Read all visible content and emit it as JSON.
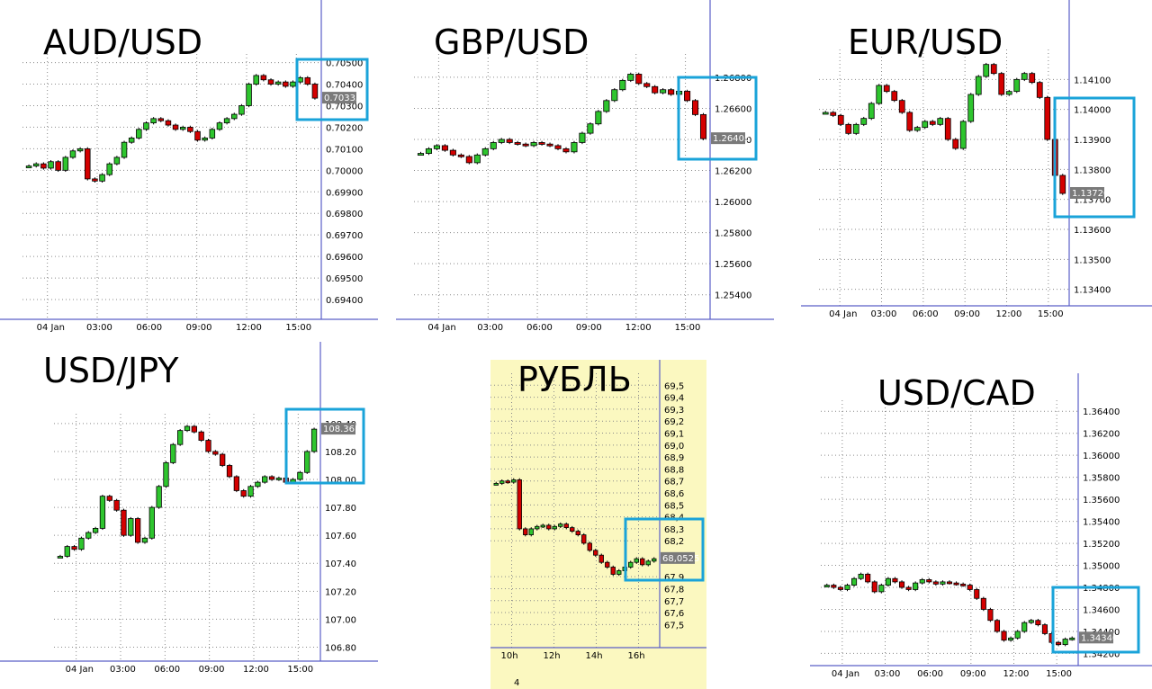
{
  "chart_data": [
    {
      "type": "candlestick",
      "title": "AUD/USD",
      "x_labels": [
        "04 Jan",
        "03:00",
        "06:00",
        "09:00",
        "12:00",
        "15:00"
      ],
      "y_ticks": [
        "0.70500",
        "0.70400",
        "0.70300",
        "0.70200",
        "0.70100",
        "0.70000",
        "0.69900",
        "0.69800",
        "0.69700",
        "0.69600",
        "0.69500",
        "0.69400"
      ],
      "ylim": [
        0.6935,
        0.7054
      ],
      "last_price_label": "0.70335",
      "last_price": 0.70335,
      "grid": true,
      "highlight": "last candles",
      "closes": [
        0.7002,
        0.7003,
        0.7001,
        0.7004,
        0.7,
        0.7006,
        0.7009,
        0.701,
        0.6996,
        0.6995,
        0.6998,
        0.7003,
        0.7006,
        0.7013,
        0.7015,
        0.7019,
        0.7022,
        0.7024,
        0.7023,
        0.7021,
        0.7019,
        0.702,
        0.7018,
        0.7014,
        0.7015,
        0.7019,
        0.7022,
        0.7024,
        0.7026,
        0.703,
        0.704,
        0.7044,
        0.7042,
        0.704,
        0.7041,
        0.7039,
        0.7041,
        0.7043,
        0.704,
        0.70335
      ]
    },
    {
      "type": "candlestick",
      "title": "GBP/USD",
      "x_labels": [
        "04 Jan",
        "03:00",
        "06:00",
        "09:00",
        "12:00",
        "15:00"
      ],
      "y_ticks": [
        "1.26800",
        "1.26600",
        "1.26400",
        "1.26200",
        "1.26000",
        "1.25800",
        "1.25600",
        "1.25400"
      ],
      "ylim": [
        1.253,
        1.2695
      ],
      "last_price_label": "1.26405",
      "last_price": 1.26405,
      "grid": true,
      "highlight": "last candles",
      "closes": [
        1.2631,
        1.2634,
        1.2636,
        1.2633,
        1.263,
        1.2629,
        1.2625,
        1.263,
        1.2634,
        1.2638,
        1.264,
        1.2638,
        1.2637,
        1.2636,
        1.2638,
        1.2637,
        1.2636,
        1.2634,
        1.2632,
        1.2638,
        1.2644,
        1.265,
        1.2658,
        1.2665,
        1.2672,
        1.2678,
        1.2682,
        1.2676,
        1.2674,
        1.267,
        1.2672,
        1.2669,
        1.2671,
        1.2665,
        1.2656,
        1.26405
      ]
    },
    {
      "type": "candlestick",
      "title": "EUR/USD",
      "x_labels": [
        "04 Jan",
        "03:00",
        "06:00",
        "09:00",
        "12:00",
        "15:00"
      ],
      "y_ticks": [
        "1.14100",
        "1.14000",
        "1.13900",
        "1.13800",
        "1.13700",
        "1.13600",
        "1.13500",
        "1.13400"
      ],
      "ylim": [
        1.1333,
        1.142
      ],
      "last_price_label": "1.13720",
      "last_price": 1.1372,
      "grid": true,
      "highlight": "last candles",
      "closes": [
        1.1399,
        1.1398,
        1.1395,
        1.1392,
        1.1395,
        1.1397,
        1.1402,
        1.1408,
        1.1406,
        1.1403,
        1.1399,
        1.1393,
        1.1394,
        1.1396,
        1.1395,
        1.1397,
        1.139,
        1.1387,
        1.1396,
        1.1405,
        1.1411,
        1.1415,
        1.1412,
        1.1405,
        1.1406,
        1.141,
        1.1412,
        1.1409,
        1.1404,
        1.139,
        1.1378,
        1.1372
      ]
    },
    {
      "type": "candlestick",
      "title": "USD/JPY",
      "x_labels": [
        "04 Jan",
        "03:00",
        "06:00",
        "09:00",
        "12:00",
        "15:00"
      ],
      "y_ticks": [
        "108.40",
        "108.20",
        "108.00",
        "107.80",
        "107.60",
        "107.40",
        "107.20",
        "107.00",
        "106.80"
      ],
      "ylim": [
        106.7,
        108.47
      ],
      "last_price_label": "108.36",
      "last_price": 108.36,
      "grid": true,
      "highlight": "last candles",
      "closes": [
        107.45,
        107.52,
        107.5,
        107.58,
        107.62,
        107.65,
        107.88,
        107.85,
        107.78,
        107.6,
        107.72,
        107.55,
        107.58,
        107.8,
        107.95,
        108.12,
        108.25,
        108.35,
        108.38,
        108.34,
        108.28,
        108.2,
        108.18,
        108.1,
        108.02,
        107.92,
        107.88,
        107.95,
        107.98,
        108.02,
        108.0,
        108.01,
        107.98,
        108.0,
        108.05,
        108.2,
        108.36
      ]
    },
    {
      "type": "candlestick",
      "title": "РУБЛЬ",
      "x_labels": [
        "10h",
        "12h",
        "14h",
        "16h"
      ],
      "x_sublabel": "4",
      "y_ticks": [
        "69,5",
        "69,4",
        "69,3",
        "69,2",
        "69,1",
        "69,0",
        "68,9",
        "68,8",
        "68,7",
        "68,6",
        "68,5",
        "68,4",
        "68,3",
        "68,2",
        "67,9",
        "67,8",
        "67,7",
        "67,6",
        "67,5"
      ],
      "ylim": [
        67.42,
        69.6
      ],
      "last_price_label": "68,0525",
      "last_price": 68.0525,
      "grid": true,
      "highlight": "last candles",
      "closes": [
        68.68,
        68.7,
        68.69,
        68.71,
        68.3,
        68.25,
        68.3,
        68.32,
        68.33,
        68.3,
        68.32,
        68.34,
        68.31,
        68.28,
        68.25,
        68.18,
        68.12,
        68.08,
        68.02,
        67.98,
        67.92,
        67.95,
        67.98,
        68.02,
        68.05,
        68.0,
        68.03,
        68.05
      ]
    },
    {
      "type": "candlestick",
      "title": "USD/CAD",
      "x_labels": [
        "04 Jan",
        "03:00",
        "06:00",
        "09:00",
        "12:00",
        "15:00"
      ],
      "y_ticks": [
        "1.36400",
        "1.36200",
        "1.36000",
        "1.35800",
        "1.35600",
        "1.35400",
        "1.35200",
        "1.35000",
        "1.34800",
        "1.34600",
        "1.34400",
        "1.34200"
      ],
      "ylim": [
        1.3413,
        1.365
      ],
      "last_price_label": "1.34340",
      "last_price": 1.3434,
      "grid": true,
      "highlight": "last candles",
      "closes": [
        1.3482,
        1.348,
        1.3478,
        1.3482,
        1.3488,
        1.3492,
        1.3485,
        1.3476,
        1.3482,
        1.3488,
        1.3485,
        1.348,
        1.3478,
        1.3484,
        1.3487,
        1.3485,
        1.3483,
        1.3485,
        1.3484,
        1.3483,
        1.3482,
        1.3478,
        1.347,
        1.346,
        1.345,
        1.344,
        1.3432,
        1.3434,
        1.344,
        1.3448,
        1.345,
        1.3446,
        1.3438,
        1.343,
        1.3428,
        1.3433,
        1.3434
      ]
    }
  ]
}
